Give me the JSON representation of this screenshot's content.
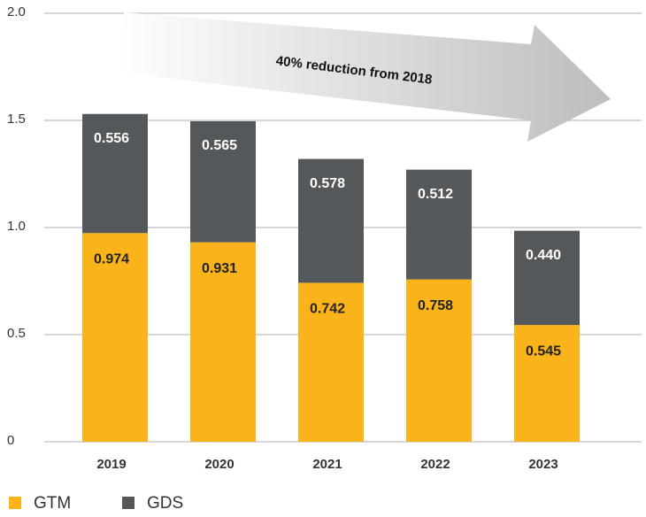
{
  "chart_data": {
    "type": "stacked_bar",
    "annotation": "40% reduction from 2018",
    "categories": [
      "2019",
      "2020",
      "2021",
      "2022",
      "2023"
    ],
    "series": [
      {
        "name": "GTM",
        "color": "#fbb31b",
        "values": [
          0.974,
          0.931,
          0.742,
          0.758,
          0.545
        ],
        "value_labels": [
          "0.974",
          "0.931",
          "0.742",
          "0.758",
          "0.545"
        ]
      },
      {
        "name": "GDS",
        "color": "#54585a",
        "values": [
          0.556,
          0.565,
          0.578,
          0.512,
          0.44
        ],
        "value_labels": [
          "0.556",
          "0.565",
          "0.578",
          "0.512",
          "0.440"
        ]
      }
    ],
    "ylim": [
      0,
      2
    ],
    "yticks": [
      0,
      0.5,
      {
        "value": 1,
        "label": "1.0"
      },
      1.5,
      {
        "value": 2,
        "label": "2.0"
      }
    ],
    "grid": true,
    "legend": "bottom"
  }
}
